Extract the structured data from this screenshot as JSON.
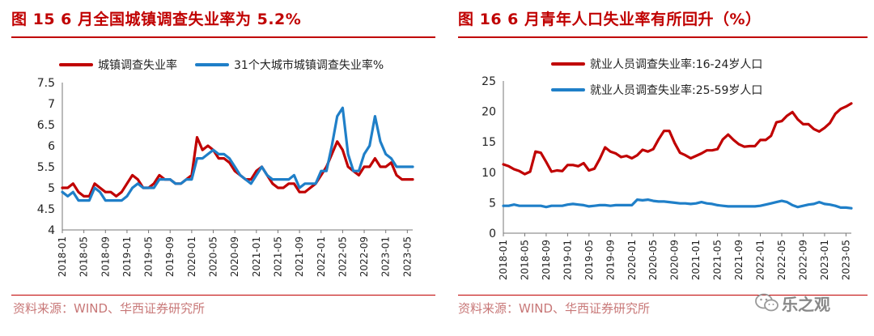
{
  "left": {
    "title": "图 15  6 月全国城镇调查失业率为 5.2%",
    "source": "资料来源：WIND、华西证券研究所"
  },
  "right": {
    "title": "图 16  6 月青年人口失业率有所回升（%）",
    "source": "资料来源：WIND、华西证券研究所"
  },
  "watermark": {
    "name": "乐之观",
    "icon": "wechat-icon"
  },
  "colors": {
    "red": "#c00000",
    "blue": "#1f7fc8",
    "title": "#c00000"
  },
  "chart_data": [
    {
      "type": "line",
      "ylim": [
        4,
        7.5
      ],
      "yticks": [
        "4",
        "4.5",
        "5",
        "5.5",
        "6",
        "6.5",
        "7",
        "7.5"
      ],
      "legend_position": "top",
      "x_tick_labels": [
        "2018-01",
        "2018-05",
        "2018-09",
        "2019-01",
        "2019-05",
        "2019-09",
        "2020-01",
        "2020-05",
        "2020-09",
        "2021-01",
        "2021-05",
        "2021-09",
        "2022-01",
        "2022-05",
        "2022-09",
        "2023-01",
        "2023-05"
      ],
      "x": [
        "2018-01",
        "2018-02",
        "2018-03",
        "2018-04",
        "2018-05",
        "2018-06",
        "2018-07",
        "2018-08",
        "2018-09",
        "2018-10",
        "2018-11",
        "2018-12",
        "2019-01",
        "2019-02",
        "2019-03",
        "2019-04",
        "2019-05",
        "2019-06",
        "2019-07",
        "2019-08",
        "2019-09",
        "2019-10",
        "2019-11",
        "2019-12",
        "2020-01",
        "2020-02",
        "2020-03",
        "2020-04",
        "2020-05",
        "2020-06",
        "2020-07",
        "2020-08",
        "2020-09",
        "2020-10",
        "2020-11",
        "2020-12",
        "2021-01",
        "2021-02",
        "2021-03",
        "2021-04",
        "2021-05",
        "2021-06",
        "2021-07",
        "2021-08",
        "2021-09",
        "2021-10",
        "2021-11",
        "2021-12",
        "2022-01",
        "2022-02",
        "2022-03",
        "2022-04",
        "2022-05",
        "2022-06",
        "2022-07",
        "2022-08",
        "2022-09",
        "2022-10",
        "2022-11",
        "2022-12",
        "2023-01",
        "2023-02",
        "2023-03",
        "2023-04",
        "2023-05",
        "2023-06"
      ],
      "series": [
        {
          "name": "城镇调查失业率",
          "color": "#c00000",
          "values": [
            5.0,
            5.0,
            5.1,
            4.9,
            4.8,
            4.8,
            5.1,
            5.0,
            4.9,
            4.9,
            4.8,
            4.9,
            5.1,
            5.3,
            5.2,
            5.0,
            5.0,
            5.1,
            5.3,
            5.2,
            5.2,
            5.1,
            5.1,
            5.2,
            5.3,
            6.2,
            5.9,
            6.0,
            5.9,
            5.7,
            5.7,
            5.6,
            5.4,
            5.3,
            5.2,
            5.2,
            5.4,
            5.5,
            5.3,
            5.1,
            5.0,
            5.0,
            5.1,
            5.1,
            4.9,
            4.9,
            5.0,
            5.1,
            5.3,
            5.5,
            5.8,
            6.1,
            5.9,
            5.5,
            5.4,
            5.3,
            5.5,
            5.5,
            5.7,
            5.5,
            5.5,
            5.6,
            5.3,
            5.2,
            5.2,
            5.2
          ]
        },
        {
          "name": "31个大城市城镇调查失业率%",
          "color": "#1f7fc8",
          "values": [
            4.9,
            4.8,
            4.9,
            4.7,
            4.7,
            4.7,
            5.0,
            4.9,
            4.7,
            4.7,
            4.7,
            4.7,
            4.8,
            5.0,
            5.1,
            5.0,
            5.0,
            5.0,
            5.2,
            5.2,
            5.2,
            5.1,
            5.1,
            5.2,
            5.2,
            5.7,
            5.7,
            5.8,
            5.9,
            5.8,
            5.8,
            5.7,
            5.5,
            5.3,
            5.2,
            5.1,
            5.3,
            5.5,
            5.3,
            5.2,
            5.2,
            5.2,
            5.2,
            5.3,
            5.0,
            5.1,
            5.1,
            5.1,
            5.4,
            5.4,
            6.0,
            6.7,
            6.9,
            5.8,
            5.4,
            5.4,
            5.8,
            6.0,
            6.7,
            6.1,
            5.8,
            5.7,
            5.5,
            5.5,
            5.5,
            5.5
          ]
        }
      ]
    },
    {
      "type": "line",
      "ylim": [
        0,
        25
      ],
      "yticks": [
        "0",
        "5",
        "10",
        "15",
        "20",
        "25"
      ],
      "legend_position": "top-left",
      "x_tick_labels": [
        "2018-01",
        "2018-05",
        "2018-09",
        "2019-01",
        "2019-05",
        "2019-09",
        "2020-01",
        "2020-05",
        "2020-09",
        "2021-01",
        "2021-05",
        "2021-09",
        "2022-01",
        "2022-05",
        "2022-09",
        "2023-01",
        "2023-05"
      ],
      "x": [
        "2018-01",
        "2018-02",
        "2018-03",
        "2018-04",
        "2018-05",
        "2018-06",
        "2018-07",
        "2018-08",
        "2018-09",
        "2018-10",
        "2018-11",
        "2018-12",
        "2019-01",
        "2019-02",
        "2019-03",
        "2019-04",
        "2019-05",
        "2019-06",
        "2019-07",
        "2019-08",
        "2019-09",
        "2019-10",
        "2019-11",
        "2019-12",
        "2020-01",
        "2020-02",
        "2020-03",
        "2020-04",
        "2020-05",
        "2020-06",
        "2020-07",
        "2020-08",
        "2020-09",
        "2020-10",
        "2020-11",
        "2020-12",
        "2021-01",
        "2021-02",
        "2021-03",
        "2021-04",
        "2021-05",
        "2021-06",
        "2021-07",
        "2021-08",
        "2021-09",
        "2021-10",
        "2021-11",
        "2021-12",
        "2022-01",
        "2022-02",
        "2022-03",
        "2022-04",
        "2022-05",
        "2022-06",
        "2022-07",
        "2022-08",
        "2022-09",
        "2022-10",
        "2022-11",
        "2022-12",
        "2023-01",
        "2023-02",
        "2023-03",
        "2023-04",
        "2023-05",
        "2023-06"
      ],
      "series": [
        {
          "name": "就业人员调查失业率:16-24岁人口",
          "color": "#c00000",
          "values": [
            11.3,
            11.0,
            10.5,
            10.2,
            9.7,
            10.1,
            13.4,
            13.2,
            11.7,
            10.1,
            10.3,
            10.2,
            11.2,
            11.2,
            11.0,
            11.5,
            10.3,
            10.6,
            12.2,
            14.1,
            13.4,
            13.1,
            12.5,
            12.7,
            12.3,
            12.8,
            13.7,
            13.4,
            13.8,
            15.4,
            16.8,
            16.8,
            14.8,
            13.2,
            12.8,
            12.3,
            12.7,
            13.1,
            13.6,
            13.6,
            13.8,
            15.4,
            16.2,
            15.3,
            14.6,
            14.2,
            14.3,
            14.3,
            15.3,
            15.3,
            16.0,
            18.2,
            18.4,
            19.3,
            19.9,
            18.7,
            17.9,
            17.9,
            17.1,
            16.7,
            17.3,
            18.1,
            19.6,
            20.4,
            20.8,
            21.3
          ]
        },
        {
          "name": "就业人员调查失业率:25-59岁人口",
          "color": "#1f7fc8",
          "values": [
            4.5,
            4.5,
            4.7,
            4.5,
            4.5,
            4.5,
            4.5,
            4.5,
            4.3,
            4.5,
            4.5,
            4.5,
            4.7,
            4.8,
            4.7,
            4.6,
            4.4,
            4.5,
            4.6,
            4.6,
            4.5,
            4.6,
            4.6,
            4.6,
            4.6,
            5.5,
            5.4,
            5.5,
            5.3,
            5.2,
            5.2,
            5.1,
            5.0,
            4.9,
            4.9,
            4.8,
            4.9,
            5.1,
            4.9,
            4.8,
            4.6,
            4.5,
            4.4,
            4.4,
            4.4,
            4.4,
            4.4,
            4.4,
            4.5,
            4.7,
            4.9,
            5.1,
            5.3,
            5.1,
            4.6,
            4.3,
            4.5,
            4.7,
            4.8,
            5.1,
            4.8,
            4.7,
            4.5,
            4.2,
            4.2,
            4.1
          ]
        }
      ]
    }
  ]
}
